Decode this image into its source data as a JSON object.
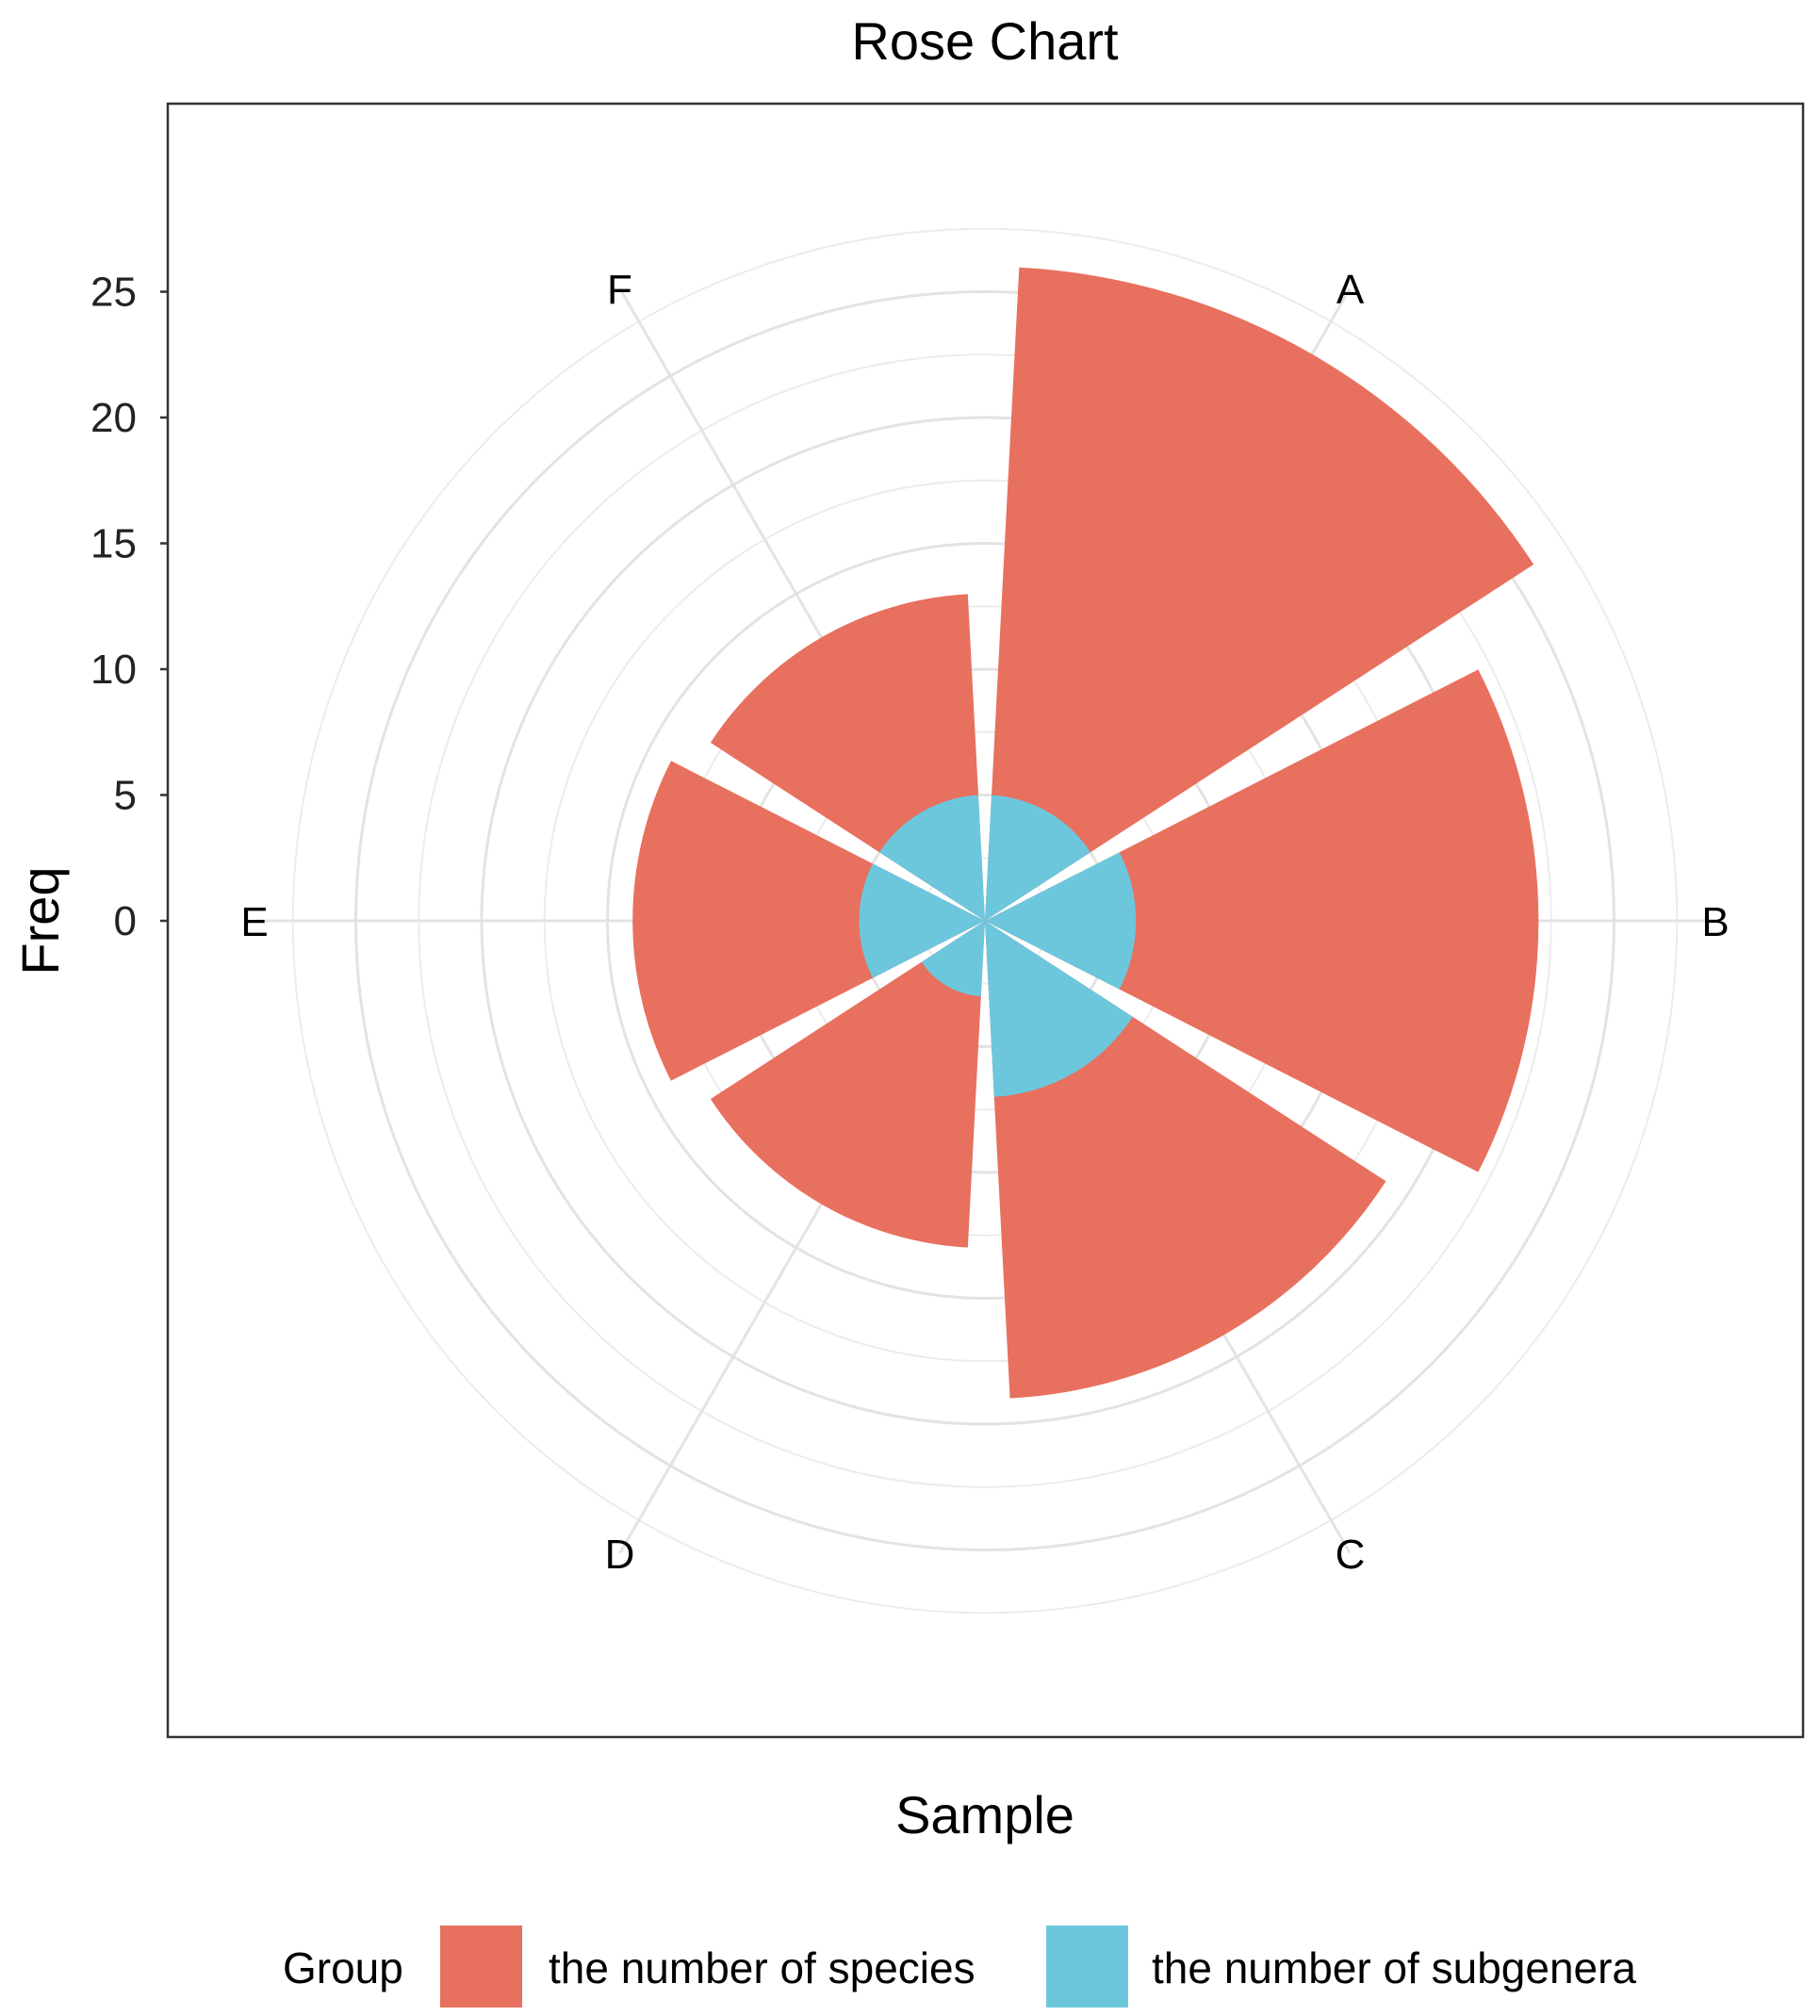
{
  "chart_data": {
    "type": "rose",
    "title": "Rose Chart",
    "xlabel": "Sample",
    "ylabel": "Freq",
    "categories": [
      "A",
      "B",
      "C",
      "D",
      "E",
      "F"
    ],
    "series": [
      {
        "name": "the number of species",
        "color": "#E8705F",
        "values": [
          26,
          22,
          19,
          13,
          14,
          13
        ]
      },
      {
        "name": "the number of subgenera",
        "color": "#6CC7DD",
        "values": [
          5,
          6,
          7,
          3,
          5,
          5
        ]
      }
    ],
    "yticks": [
      0,
      5,
      10,
      15,
      20,
      25
    ],
    "ylim": [
      0,
      29
    ],
    "grid": true,
    "legend": {
      "title": "Group",
      "position": "bottom"
    }
  }
}
